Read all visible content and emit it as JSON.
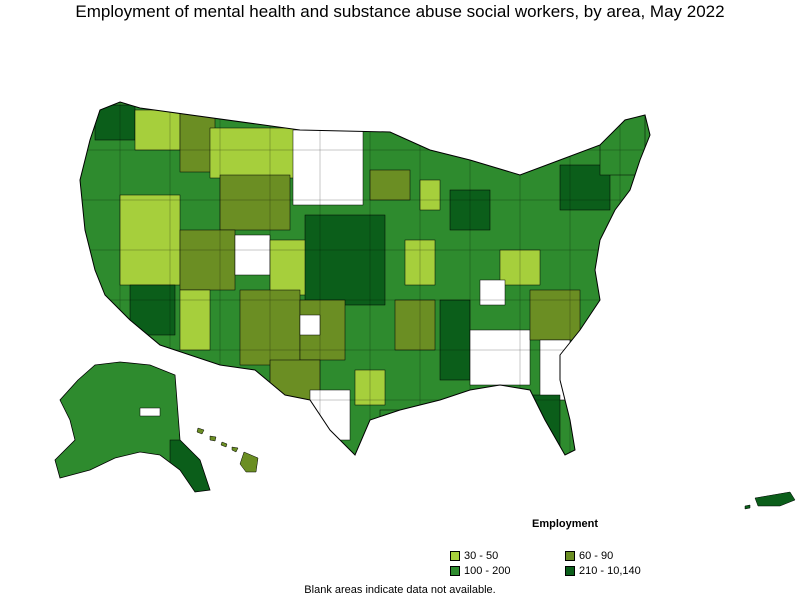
{
  "header": {
    "title": "Employment of mental health and substance abuse social workers, by area, May 2022"
  },
  "legend": {
    "title": "Employment",
    "items": [
      {
        "label": "30 - 50",
        "color": "#a6cf3c"
      },
      {
        "label": "60 - 90",
        "color": "#6b8e23"
      },
      {
        "label": "100 - 200",
        "color": "#2e8b2e"
      },
      {
        "label": "210 - 10,140",
        "color": "#0b5e1a"
      }
    ]
  },
  "footer": {
    "note": "Blank areas indicate data not available."
  },
  "colors": {
    "blank": "#ffffff",
    "border": "#000000"
  }
}
